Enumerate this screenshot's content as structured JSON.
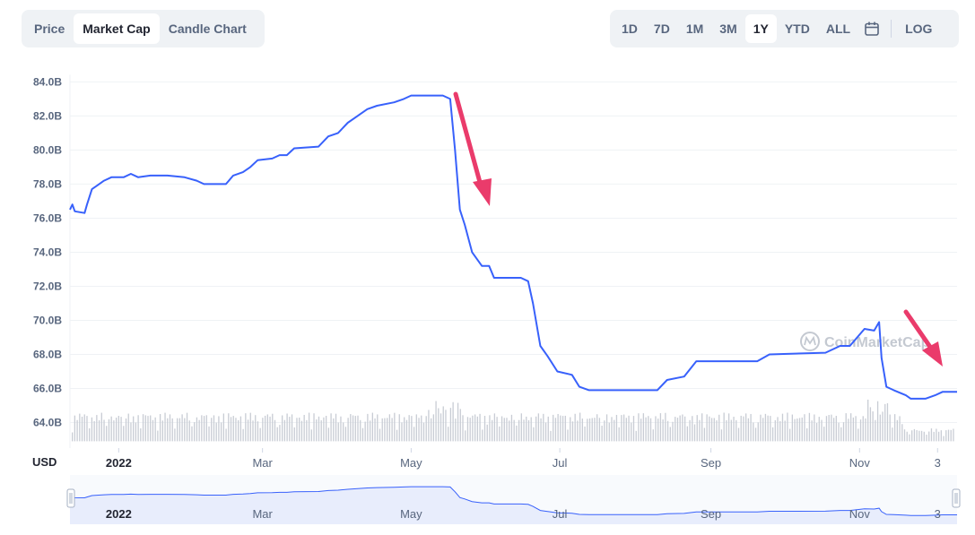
{
  "tabs_left": [
    {
      "label": "Price",
      "active": false
    },
    {
      "label": "Market Cap",
      "active": true
    },
    {
      "label": "Candle Chart",
      "active": false
    }
  ],
  "tabs_right": [
    {
      "label": "1D",
      "active": false
    },
    {
      "label": "7D",
      "active": false
    },
    {
      "label": "1M",
      "active": false
    },
    {
      "label": "3M",
      "active": false
    },
    {
      "label": "1Y",
      "active": true
    },
    {
      "label": "YTD",
      "active": false
    },
    {
      "label": "ALL",
      "active": false
    }
  ],
  "calendar_icon": "calendar-icon",
  "log_label": "LOG",
  "watermark": "CoinMarketCap",
  "colors": {
    "line": "#3861fb",
    "arrow": "#ea3b6b",
    "volume": "#c8ccd4",
    "grid": "#eff2f5",
    "navigator_fill": "#e8edfc"
  },
  "chart_data": {
    "type": "line",
    "ylabel": "USD",
    "ylim": [
      62.5,
      84.6
    ],
    "y_ticks": [
      "84.0B",
      "82.0B",
      "80.0B",
      "78.0B",
      "76.0B",
      "74.0B",
      "72.0B",
      "70.0B",
      "68.0B",
      "66.0B",
      "64.0B"
    ],
    "y_tick_values": [
      84,
      82,
      80,
      78,
      76,
      74,
      72,
      70,
      68,
      66,
      64
    ],
    "x_ticks": [
      "2022",
      "Mar",
      "May",
      "Jul",
      "Sep",
      "Nov",
      "3"
    ],
    "x_tick_dates": [
      "2022-01-01",
      "2022-03-01",
      "2022-05-01",
      "2022-07-01",
      "2022-09-01",
      "2022-11-01",
      "2022-12-03"
    ],
    "x_range": [
      "2021-12-12",
      "2022-12-11"
    ],
    "grid": true,
    "series": [
      {
        "values": [
          [
            "2021-12-12",
            76.5
          ],
          [
            "2021-12-13",
            76.8
          ],
          [
            "2021-12-14",
            76.4
          ],
          [
            "2021-12-18",
            76.3
          ],
          [
            "2021-12-19",
            76.8
          ],
          [
            "2021-12-21",
            77.7
          ],
          [
            "2021-12-23",
            77.9
          ],
          [
            "2021-12-26",
            78.2
          ],
          [
            "2021-12-29",
            78.4
          ],
          [
            "2022-01-03",
            78.4
          ],
          [
            "2022-01-06",
            78.6
          ],
          [
            "2022-01-09",
            78.4
          ],
          [
            "2022-01-14",
            78.5
          ],
          [
            "2022-01-21",
            78.5
          ],
          [
            "2022-01-28",
            78.4
          ],
          [
            "2022-02-02",
            78.2
          ],
          [
            "2022-02-05",
            78.0
          ],
          [
            "2022-02-14",
            78.0
          ],
          [
            "2022-02-17",
            78.5
          ],
          [
            "2022-02-21",
            78.7
          ],
          [
            "2022-02-24",
            79.0
          ],
          [
            "2022-02-27",
            79.4
          ],
          [
            "2022-03-05",
            79.5
          ],
          [
            "2022-03-08",
            79.7
          ],
          [
            "2022-03-11",
            79.7
          ],
          [
            "2022-03-14",
            80.1
          ],
          [
            "2022-03-24",
            80.2
          ],
          [
            "2022-03-28",
            80.8
          ],
          [
            "2022-04-01",
            81.0
          ],
          [
            "2022-04-05",
            81.6
          ],
          [
            "2022-04-09",
            82.0
          ],
          [
            "2022-04-13",
            82.4
          ],
          [
            "2022-04-17",
            82.6
          ],
          [
            "2022-04-24",
            82.8
          ],
          [
            "2022-04-28",
            83.0
          ],
          [
            "2022-05-01",
            83.2
          ],
          [
            "2022-05-10",
            83.2
          ],
          [
            "2022-05-14",
            83.2
          ],
          [
            "2022-05-17",
            83.0
          ],
          [
            "2022-05-19",
            80.0
          ],
          [
            "2022-05-21",
            76.5
          ],
          [
            "2022-05-23",
            75.6
          ],
          [
            "2022-05-26",
            74.0
          ],
          [
            "2022-05-30",
            73.2
          ],
          [
            "2022-06-02",
            73.2
          ],
          [
            "2022-06-04",
            72.5
          ],
          [
            "2022-06-15",
            72.5
          ],
          [
            "2022-06-18",
            72.3
          ],
          [
            "2022-06-20",
            71.0
          ],
          [
            "2022-06-23",
            68.5
          ],
          [
            "2022-06-26",
            67.9
          ],
          [
            "2022-06-30",
            67.0
          ],
          [
            "2022-07-06",
            66.8
          ],
          [
            "2022-07-09",
            66.1
          ],
          [
            "2022-07-13",
            65.9
          ],
          [
            "2022-07-24",
            65.9
          ],
          [
            "2022-08-10",
            65.9
          ],
          [
            "2022-08-14",
            66.5
          ],
          [
            "2022-08-21",
            66.7
          ],
          [
            "2022-08-26",
            67.6
          ],
          [
            "2022-09-20",
            67.6
          ],
          [
            "2022-09-25",
            68.0
          ],
          [
            "2022-10-18",
            68.1
          ],
          [
            "2022-10-24",
            68.5
          ],
          [
            "2022-10-28",
            68.5
          ],
          [
            "2022-11-03",
            69.5
          ],
          [
            "2022-11-07",
            69.4
          ],
          [
            "2022-11-09",
            69.9
          ],
          [
            "2022-11-10",
            67.8
          ],
          [
            "2022-11-12",
            66.1
          ],
          [
            "2022-11-15",
            65.9
          ],
          [
            "2022-11-20",
            65.6
          ],
          [
            "2022-11-22",
            65.4
          ],
          [
            "2022-11-28",
            65.4
          ],
          [
            "2022-12-02",
            65.6
          ],
          [
            "2022-12-05",
            65.8
          ],
          [
            "2022-12-11",
            65.8
          ]
        ]
      }
    ],
    "volume_baseline_period": 7
  },
  "navigator": {
    "x_ticks": [
      "2022",
      "Mar",
      "May",
      "Jul",
      "Sep",
      "Nov",
      "3"
    ]
  }
}
